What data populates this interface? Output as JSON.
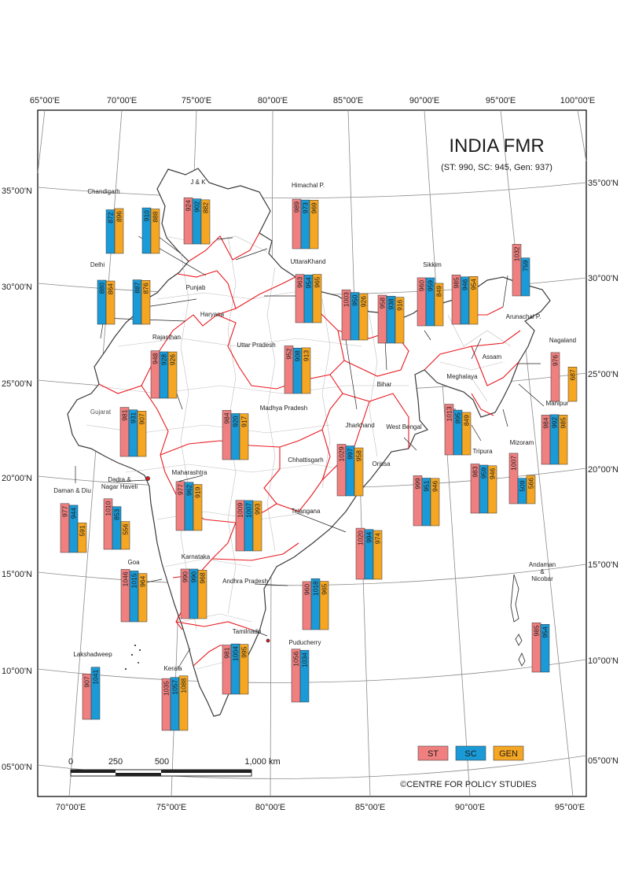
{
  "title": "INDIA FMR",
  "subtitle": "(ST: 990, SC: 945, Gen: 937)",
  "credit": "©CENTRE FOR POLICY STUDIES",
  "colors": {
    "ST": "#f08080",
    "SC": "#1a9ad6",
    "GEN": "#f5a623",
    "state_border": "#e8191f",
    "district": "#b9b9b9",
    "outline": "#3a3a3a"
  },
  "legend": [
    {
      "key": "ST",
      "label": "ST"
    },
    {
      "key": "SC",
      "label": "SC"
    },
    {
      "key": "GEN",
      "label": "GEN"
    }
  ],
  "top_ticks": [
    "65°00'E",
    "70°00'E",
    "75°00'E",
    "80°00'E",
    "85°00'E",
    "90°00'E",
    "95°00'E",
    "100°00'E"
  ],
  "bottom_ticks": [
    "70°00'E",
    "75°00'E",
    "80°00'E",
    "85°00'E",
    "90°00'E",
    "95°00'E"
  ],
  "left_ticks": [
    "35°00'N",
    "30°00'N",
    "25°00'N",
    "20°00'N",
    "15°00'N",
    "10°00'N",
    "05°00'N"
  ],
  "right_ticks": [
    "35°00'N",
    "30°00'N",
    "25°00'N",
    "20°00'N",
    "15°00'N",
    "10°00'N",
    "05°00'N"
  ],
  "scale_labels": [
    "0",
    "250",
    "500",
    "1,000 km"
  ],
  "regions": [
    {
      "name": "Chandigarh",
      "values": [
        "",
        "872",
        "896"
      ],
      "extra": [
        "910",
        "888"
      ]
    },
    {
      "name": "J & K",
      "values": [
        "924",
        "902",
        "882"
      ]
    },
    {
      "name": "Himachal P.",
      "values": [
        "989",
        "973",
        "969"
      ]
    },
    {
      "name": "Delhi",
      "values": [
        "",
        "880",
        "864"
      ],
      "extra": [
        "887",
        "876"
      ]
    },
    {
      "name": "UttaraKhand",
      "values": [
        "963",
        "954",
        "965"
      ]
    },
    {
      "name": "Sikkim",
      "values": [
        "960",
        "959",
        "849"
      ]
    },
    {
      "name": "Arunachal P.",
      "values": [
        "1032",
        "759",
        ""
      ]
    },
    {
      "name": "Punjab",
      "values": [
        "",
        "",
        ""
      ]
    },
    {
      "name": "Haryana",
      "values": [
        "",
        "",
        ""
      ]
    },
    {
      "name": "Rajasthan",
      "values": [
        "948",
        "928",
        "926"
      ]
    },
    {
      "name": "Uttar Pradesh",
      "values": [
        "952",
        "908",
        "913"
      ]
    },
    {
      "name": "Bihar",
      "values": [
        "1003",
        "950",
        "926"
      ]
    },
    {
      "name": "Assam",
      "values": [
        "958",
        "938",
        "916"
      ]
    },
    {
      "name": "Meghalaya",
      "values": [
        "985",
        "946",
        "954"
      ]
    },
    {
      "name": "Nagaland",
      "values": [
        "976",
        "",
        "687"
      ]
    },
    {
      "name": "Gujarat",
      "values": [
        "981",
        "931",
        "907"
      ]
    },
    {
      "name": "Madhya Pradesh",
      "values": [
        "984",
        "920",
        "917"
      ]
    },
    {
      "name": "Jharkhand",
      "values": [
        "1029",
        "997",
        "958"
      ]
    },
    {
      "name": "West Bengal",
      "values": [
        "1013",
        "895",
        "849"
      ]
    },
    {
      "name": "Manipur",
      "values": [
        "984",
        "992",
        "985"
      ]
    },
    {
      "name": "Tripura",
      "values": [
        "983",
        "959",
        "946"
      ]
    },
    {
      "name": "Mizoram",
      "values": [
        "1007",
        "509",
        "566"
      ]
    },
    {
      "name": "Daman & Diu",
      "values": [
        "977",
        "944",
        "591"
      ]
    },
    {
      "name": "Dadra & Nagar Haveli",
      "values": [
        "1010",
        "853",
        "556"
      ]
    },
    {
      "name": "Maharashtra",
      "values": [
        "977",
        "962",
        "919"
      ]
    },
    {
      "name": "Chhattisgarh",
      "values": [
        "1009",
        "1007",
        "993"
      ]
    },
    {
      "name": "Orissa",
      "values": [
        "999",
        "951",
        "946"
      ]
    },
    {
      "name": "Telangana",
      "values": [
        "1020",
        "994",
        "974"
      ]
    },
    {
      "name": "Goa",
      "values": [
        "1046",
        "1015",
        "964"
      ]
    },
    {
      "name": "Karnataka",
      "values": [
        "990",
        "990",
        "968"
      ]
    },
    {
      "name": "Andhra Pradesh",
      "values": [
        "960",
        "1018",
        "965"
      ]
    },
    {
      "name": "Andaman & Nicobar",
      "values": [
        "985",
        "954",
        ""
      ]
    },
    {
      "name": "Lakshadweep",
      "values": [
        "907",
        "1041",
        ""
      ]
    },
    {
      "name": "Kerala",
      "values": [
        "1035",
        "1057",
        "1088"
      ]
    },
    {
      "name": "Tamilnadu",
      "values": [
        "981",
        "1004",
        "995"
      ]
    },
    {
      "name": "Puducherry",
      "values": [
        "1056",
        "1034",
        ""
      ]
    }
  ]
}
